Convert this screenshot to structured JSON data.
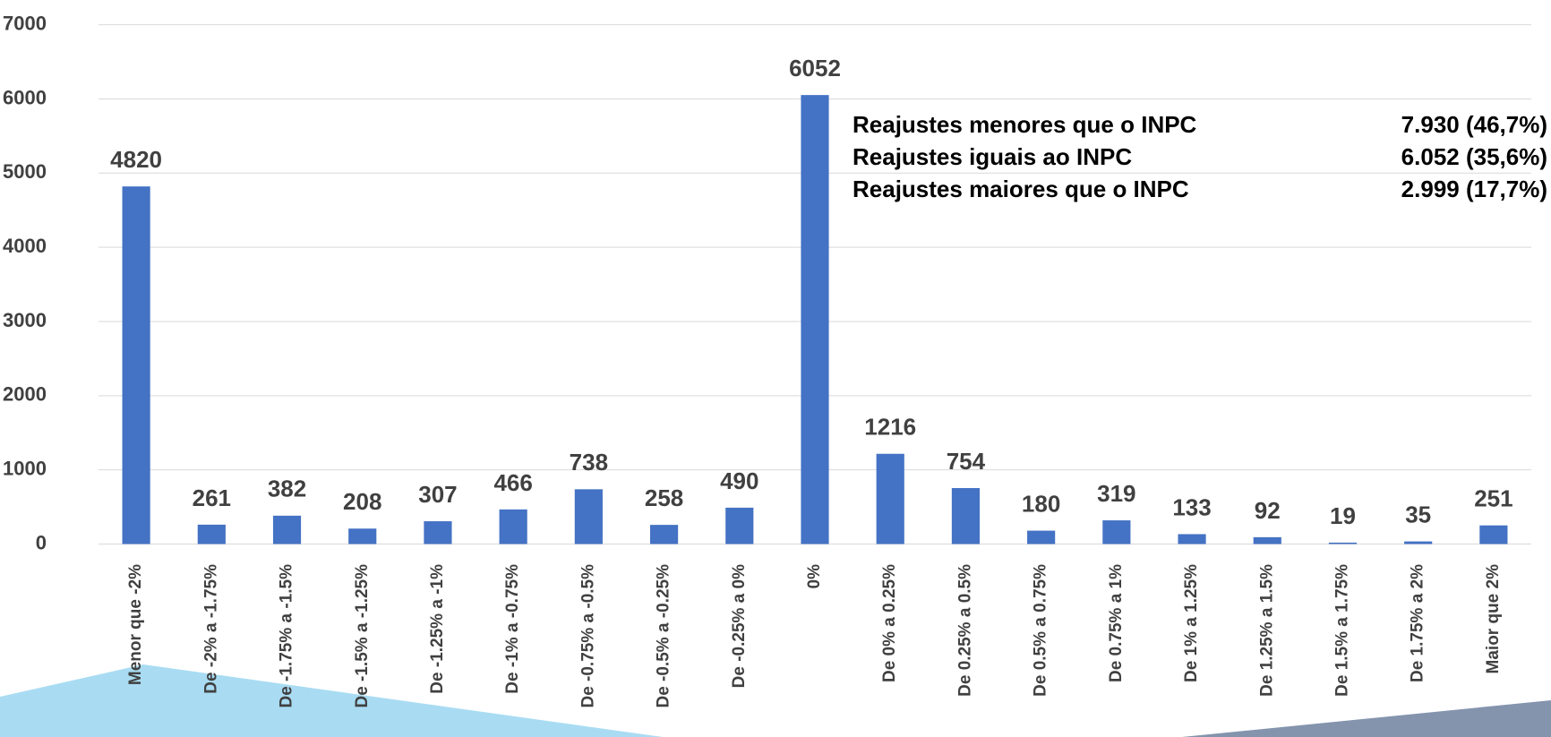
{
  "chart_data": {
    "type": "bar",
    "categories": [
      "Menor que -2%",
      "De -2% a -1.75%",
      "De -1.75% a -1.5%",
      "De -1.5% a -1.25%",
      "De -1.25% a -1%",
      "De -1% a -0.75%",
      "De -0.75% a -0.5%",
      "De -0.5% a -0.25%",
      "De -0.25% a 0%",
      "0%",
      "De 0% a 0.25%",
      "De 0.25% a 0.5%",
      "De 0.5% a 0.75%",
      "De 0.75% a 1%",
      "De 1% a 1.25%",
      "De 1.25% a 1.5%",
      "De 1.5% a 1.75%",
      "De 1.75% a 2%",
      "Maior que 2%"
    ],
    "values": [
      4820,
      261,
      382,
      208,
      307,
      466,
      738,
      258,
      490,
      6052,
      1216,
      754,
      180,
      319,
      133,
      92,
      19,
      35,
      251
    ],
    "color": "#4472c4",
    "ylim": [
      0,
      7000
    ],
    "yticks": [
      0,
      1000,
      2000,
      3000,
      4000,
      5000,
      6000,
      7000
    ],
    "grid": true,
    "annotations": [
      {
        "label": "Reajustes menores que o INPC",
        "value": "7.930 (46,7%)"
      },
      {
        "label": "Reajustes iguais ao INPC",
        "value": "6.052 (35,6%)"
      },
      {
        "label": "Reajustes maiores que o INPC",
        "value": "2.999 (17,7%)"
      }
    ]
  }
}
